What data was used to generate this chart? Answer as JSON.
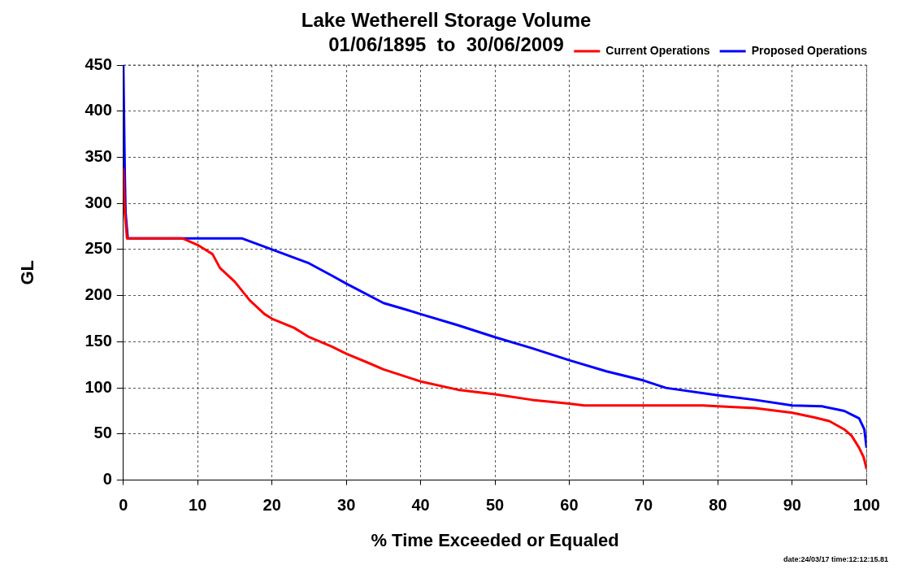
{
  "chart_data": {
    "type": "line",
    "title": "Lake Wetherell Storage Volume\n01/06/1895  to  30/06/2009",
    "xlabel": "% Time Exceeded or Equaled",
    "ylabel": "GL",
    "xlim": [
      0,
      100
    ],
    "xticks": [
      0,
      10,
      20,
      30,
      40,
      50,
      60,
      70,
      80,
      90,
      100
    ],
    "ylim": [
      0,
      450
    ],
    "yticks": [
      0,
      50,
      100,
      150,
      200,
      250,
      300,
      350,
      400,
      450
    ],
    "grid": true,
    "legend": "top right",
    "marker": "none",
    "line_style": "solid",
    "annotations": [
      "date:24/03/17 time:12:12:15.81"
    ],
    "series": [
      {
        "name": "Current Operations",
        "color": "#ff0000",
        "x": [
          0,
          0.2,
          0.5,
          8,
          10,
          12,
          13,
          15,
          17,
          19,
          20,
          23,
          25,
          28,
          30,
          33,
          35,
          40,
          45,
          50,
          55,
          60,
          62,
          78,
          80,
          85,
          90,
          93,
          95,
          97,
          98,
          99,
          99.6,
          100
        ],
        "values": [
          338,
          290,
          262,
          262,
          255,
          245,
          230,
          215,
          195,
          180,
          175,
          165,
          155,
          145,
          137,
          127,
          120,
          107,
          98,
          93,
          87,
          83,
          81,
          81,
          80,
          78,
          73,
          68,
          64,
          55,
          48,
          35,
          25,
          12
        ]
      },
      {
        "name": "Proposed Operations",
        "color": "#0000ff",
        "x": [
          0,
          0.2,
          0.3,
          0.6,
          16,
          20,
          25,
          28,
          30,
          35,
          38,
          40,
          45,
          50,
          55,
          60,
          65,
          70,
          73,
          80,
          85,
          90,
          94,
          97,
          99,
          99.7,
          100
        ],
        "values": [
          450,
          330,
          290,
          262,
          262,
          250,
          235,
          222,
          213,
          192,
          185,
          180,
          168,
          155,
          143,
          130,
          118,
          108,
          100,
          92,
          87,
          81,
          80,
          75,
          67,
          55,
          35
        ]
      }
    ]
  }
}
